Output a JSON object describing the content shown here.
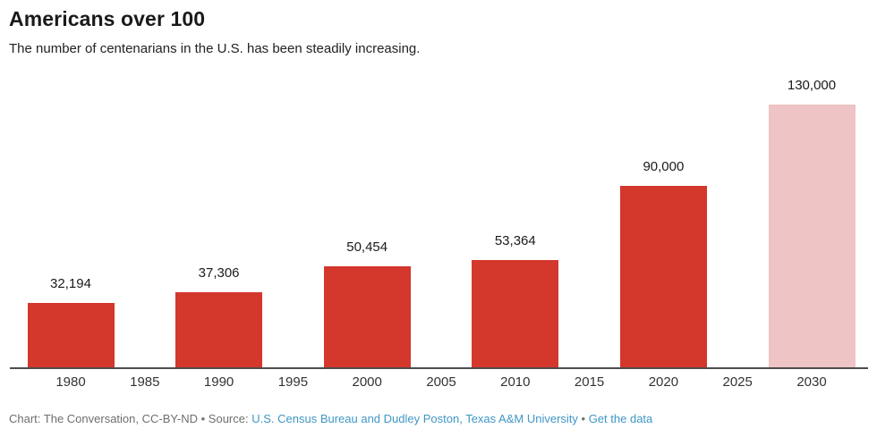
{
  "header": {
    "title": "Americans over 100",
    "subtitle": "The number of centenarians in the U.S. has been steadily increasing."
  },
  "chart_data": {
    "type": "bar",
    "title": "Americans over 100",
    "subtitle": "The number of centenarians in the U.S. has been steadily increasing.",
    "categories": [
      "1980",
      "1985",
      "1990",
      "1995",
      "2000",
      "2005",
      "2010",
      "2015",
      "2020",
      "2025",
      "2030"
    ],
    "values": [
      32194,
      null,
      37306,
      null,
      50454,
      null,
      53364,
      null,
      90000,
      null,
      130000
    ],
    "value_labels": [
      "32,194",
      null,
      "37,306",
      null,
      "50,454",
      null,
      "53,364",
      null,
      "90,000",
      null,
      "130,000"
    ],
    "projected_index": 10,
    "xlabel": "",
    "ylabel": "",
    "ylim": [
      0,
      130000
    ],
    "grid": false,
    "legend": "none",
    "colors": {
      "bar": "#d4372c",
      "projected_bar": "#eec4c4",
      "axis": "#4d4d4d",
      "value_label": "#1a1a1a",
      "tick_label": "#333333"
    }
  },
  "footer": {
    "attribution": "Chart: The Conversation, CC-BY-ND",
    "separator": "•",
    "source_prefix": "Source:",
    "source_link": "U.S. Census Bureau and Dudley Poston, Texas A&M University",
    "separator2": "•",
    "get_data_label": "Get the data",
    "link_color": "#3f97c5",
    "text_color": "#6e6e6e"
  }
}
